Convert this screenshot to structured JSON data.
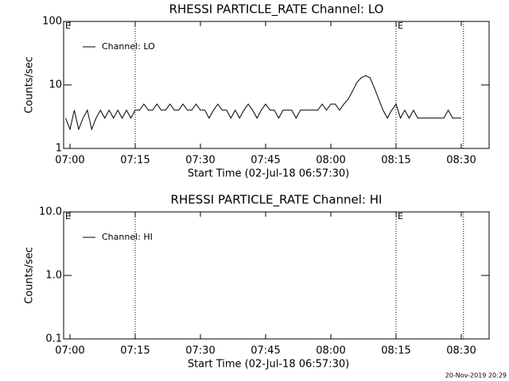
{
  "chart_data": [
    {
      "type": "line",
      "title": "RHESSI PARTICLE_RATE Channel: LO",
      "xlabel": "Start Time (02-Jul-18 06:57:30)",
      "ylabel": "Counts/sec",
      "x": [
        419,
        420,
        421,
        422,
        423,
        424,
        425,
        426,
        427,
        428,
        429,
        430,
        431,
        432,
        433,
        434,
        435,
        436,
        437,
        438,
        439,
        440,
        441,
        442,
        443,
        444,
        445,
        446,
        447,
        448,
        449,
        450,
        451,
        452,
        453,
        454,
        455,
        456,
        457,
        458,
        459,
        460,
        461,
        462,
        463,
        464,
        465,
        466,
        467,
        468,
        469,
        470,
        471,
        472,
        473,
        474,
        475,
        476,
        477,
        478,
        479,
        480,
        481,
        482,
        483,
        484,
        485,
        486,
        487,
        488,
        489,
        490,
        491,
        492,
        493,
        494,
        495,
        496,
        497,
        498,
        499,
        500,
        501,
        502,
        503,
        504,
        505,
        506,
        507,
        508,
        509,
        510
      ],
      "series": [
        {
          "name": "Channel: LO",
          "color": "#000000",
          "values": [
            3,
            2,
            4,
            2,
            3,
            4,
            2,
            3,
            4,
            3,
            4,
            3,
            4,
            3,
            4,
            3,
            4,
            4,
            5,
            4,
            4,
            5,
            4,
            4,
            5,
            4,
            4,
            5,
            4,
            4,
            5,
            4,
            4,
            3,
            4,
            5,
            4,
            4,
            3,
            4,
            3,
            4,
            5,
            4,
            3,
            4,
            5,
            4,
            4,
            3,
            4,
            4,
            4,
            3,
            4,
            4,
            4,
            4,
            4,
            5,
            4,
            5,
            5,
            4,
            5,
            6,
            8,
            11,
            13,
            14,
            13,
            9,
            6,
            4,
            3,
            4,
            5,
            3,
            4,
            3,
            4,
            3,
            3,
            3,
            3,
            3,
            3,
            3,
            4,
            3,
            3,
            3
          ]
        }
      ],
      "xlim": [
        418.54,
        516.4
      ],
      "xticks": [
        {
          "value": 420,
          "label": "07:00"
        },
        {
          "value": 435,
          "label": "07:15"
        },
        {
          "value": 450,
          "label": "07:30"
        },
        {
          "value": 465,
          "label": "07:45"
        },
        {
          "value": 480,
          "label": "08:00"
        },
        {
          "value": 495,
          "label": "08:15"
        },
        {
          "value": 510,
          "label": "08:30"
        }
      ],
      "ylim": [
        1,
        100
      ],
      "yticks": [
        1,
        10,
        100
      ],
      "log_y": true,
      "legend": "upper left",
      "vlines": [
        435,
        495,
        510.5
      ],
      "annotations": [
        {
          "text": "E",
          "x": 418.54
        },
        {
          "text": "E",
          "x": 495
        }
      ]
    },
    {
      "type": "line",
      "title": "RHESSI PARTICLE_RATE Channel: HI",
      "xlabel": "Start Time (02-Jul-18 06:57:30)",
      "ylabel": "Counts/sec",
      "x": [],
      "series": [
        {
          "name": "Channel: HI",
          "color": "#000000",
          "values": []
        }
      ],
      "xlim": [
        418.54,
        516.4
      ],
      "xticks": [
        {
          "value": 420,
          "label": "07:00"
        },
        {
          "value": 435,
          "label": "07:15"
        },
        {
          "value": 450,
          "label": "07:30"
        },
        {
          "value": 465,
          "label": "07:45"
        },
        {
          "value": 480,
          "label": "08:00"
        },
        {
          "value": 495,
          "label": "08:15"
        },
        {
          "value": 510,
          "label": "08:30"
        }
      ],
      "ylim": [
        0.1,
        10
      ],
      "yticks": [
        {
          "value": 0.1,
          "label": "0.1"
        },
        {
          "value": 1,
          "label": "1.0"
        },
        {
          "value": 10,
          "label": "10.0"
        }
      ],
      "log_y": true,
      "legend": "upper left",
      "vlines": [
        435,
        495,
        510.5
      ],
      "annotations": [
        {
          "text": "E",
          "x": 418.54
        },
        {
          "text": "E",
          "x": 495
        }
      ]
    }
  ],
  "footer": "20-Nov-2019 20:29"
}
